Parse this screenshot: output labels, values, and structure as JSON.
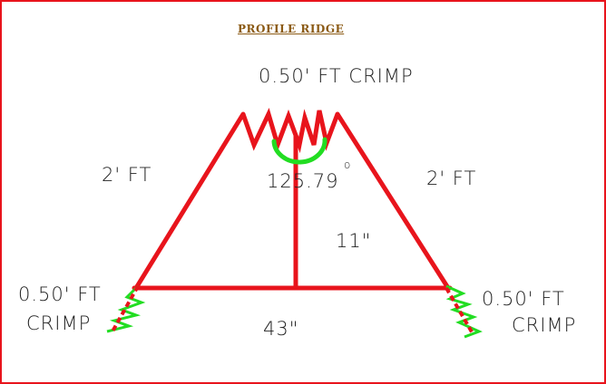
{
  "title": "PROFILE  RIDGE",
  "labels": {
    "top_crimp": "0.50' FT CRIMP",
    "left_side": "2' FT",
    "right_side": "2' FT",
    "angle": "125.79",
    "degree_mark": "o",
    "height": "11\"",
    "base": "43\"",
    "left_crimp_line1": "0.50' FT",
    "left_crimp_line2": "CRIMP",
    "right_crimp_line1": "0.50' FT",
    "right_crimp_line2": "CRIMP"
  },
  "colors": {
    "frame": "#e8141c",
    "lines": "#e8141c",
    "arc": "#22dd22",
    "crimp_accent": "#22dd22",
    "title": "#8b5a14",
    "text": "#222222"
  }
}
